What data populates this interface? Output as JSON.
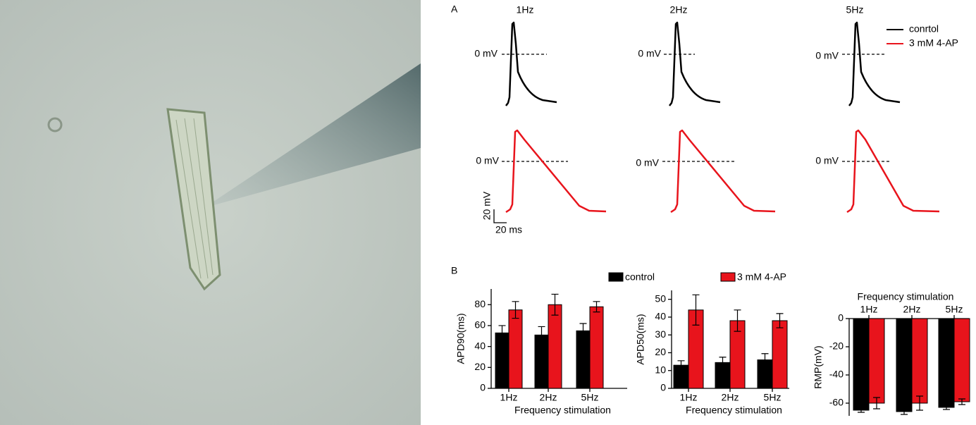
{
  "panel_labels": [
    "A",
    "B"
  ],
  "panel_a": {
    "frequencies": [
      "1Hz",
      "2Hz",
      "5Hz"
    ],
    "zero_label": "0 mV",
    "legend": [
      "conrtol",
      "3 mM 4-AP"
    ],
    "scale_y": "20 mV",
    "scale_x": "20 ms"
  },
  "chart_data": [
    {
      "type": "bar",
      "ylabel": "APD90(ms)",
      "xlabel": "Frequency stimulation",
      "categories": [
        "1Hz",
        "2Hz",
        "5Hz"
      ],
      "series": [
        {
          "name": "control",
          "color": "#000000",
          "values": [
            53,
            51,
            55
          ],
          "errors": [
            7,
            8,
            7
          ]
        },
        {
          "name": "3 mM 4-AP",
          "color": "#e8141c",
          "values": [
            75,
            80,
            78
          ],
          "errors": [
            8,
            10,
            5
          ]
        }
      ],
      "ylim": [
        0,
        95
      ],
      "yticks": [
        0,
        20,
        40,
        60,
        80
      ],
      "legend": true
    },
    {
      "type": "bar",
      "ylabel": "APD50(ms)",
      "xlabel": "Frequency stimulation",
      "categories": [
        "1Hz",
        "2Hz",
        "5Hz"
      ],
      "series": [
        {
          "name": "control",
          "color": "#000000",
          "values": [
            13,
            14.5,
            16
          ],
          "errors": [
            2.5,
            3,
            3.5
          ]
        },
        {
          "name": "3 mM 4-AP",
          "color": "#e8141c",
          "values": [
            44,
            38,
            38
          ],
          "errors": [
            8.5,
            6,
            4
          ]
        }
      ],
      "ylim": [
        0,
        55
      ],
      "yticks": [
        0,
        10,
        20,
        30,
        40,
        50
      ],
      "legend": false
    },
    {
      "type": "bar",
      "ylabel": "RMP(mV)",
      "xlabel": "Frequency stimulation",
      "xaxis_position": "top",
      "categories": [
        "1Hz",
        "2Hz",
        "5Hz"
      ],
      "series": [
        {
          "name": "control",
          "color": "#000000",
          "values": [
            -65,
            -66,
            -63
          ],
          "errors": [
            1.5,
            2,
            1.5
          ]
        },
        {
          "name": "3 mM 4-AP",
          "color": "#e8141c",
          "values": [
            -60,
            -60,
            -59
          ],
          "errors": [
            4,
            5,
            2
          ]
        }
      ],
      "ylim": [
        -69,
        0
      ],
      "yticks": [
        0,
        -20,
        -40,
        -60
      ],
      "legend": false
    }
  ]
}
